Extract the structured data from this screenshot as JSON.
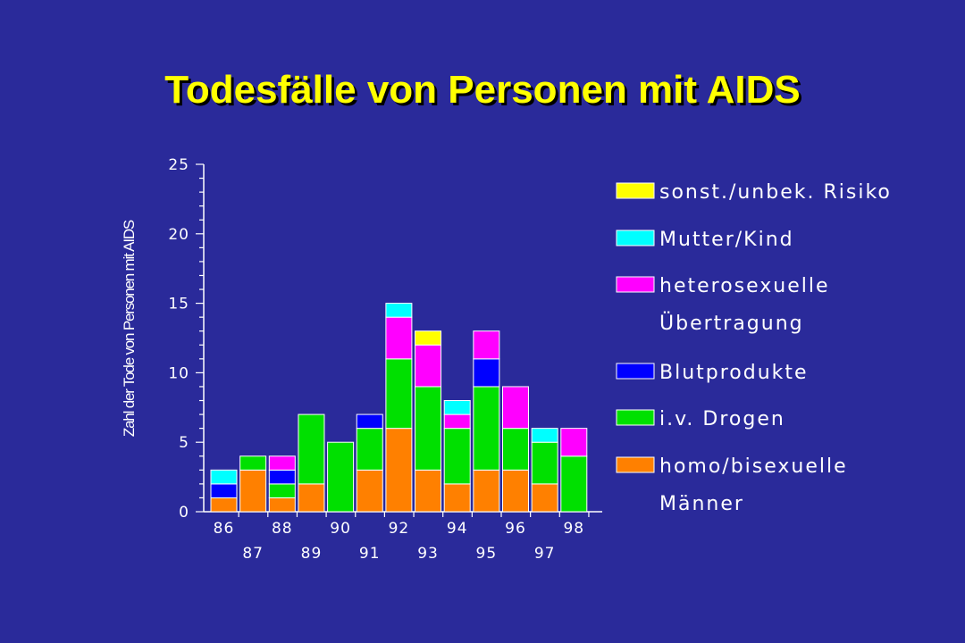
{
  "chart_data": {
    "type": "bar",
    "stacked": true,
    "title": "Todesfälle von Personen mit AIDS",
    "ylabel": "Zahl der Tode von Personen mit AIDS",
    "xlabel": "",
    "ylim": [
      0,
      25
    ],
    "yticks": [
      "0",
      "5",
      "10",
      "15",
      "20",
      "25"
    ],
    "categories": [
      "86",
      "87",
      "88",
      "89",
      "90",
      "91",
      "92",
      "93",
      "94",
      "95",
      "96",
      "97",
      "98"
    ],
    "series": [
      {
        "name": "homo/bisexuelle Männer",
        "color": "#ff8000",
        "values": [
          1,
          3,
          1,
          2,
          0,
          3,
          6,
          3,
          2,
          3,
          3,
          2,
          0
        ]
      },
      {
        "name": "i.v. Drogen",
        "color": "#00e000",
        "values": [
          0,
          1,
          1,
          5,
          5,
          3,
          5,
          6,
          4,
          6,
          3,
          3,
          4
        ]
      },
      {
        "name": "Blutprodukte",
        "color": "#0000ff",
        "values": [
          1,
          0,
          1,
          0,
          0,
          1,
          0,
          0,
          0,
          2,
          0,
          0,
          0
        ]
      },
      {
        "name": "heterosexuelle Übertragung",
        "color": "#ff00ff",
        "values": [
          0,
          0,
          1,
          0,
          0,
          0,
          3,
          3,
          1,
          2,
          3,
          0,
          2
        ]
      },
      {
        "name": "Mutter/Kind",
        "color": "#00ffff",
        "values": [
          1,
          0,
          0,
          0,
          0,
          0,
          1,
          0,
          1,
          0,
          0,
          1,
          0
        ]
      },
      {
        "name": "sonst./unbek. Risiko",
        "color": "#ffff00",
        "values": [
          0,
          0,
          0,
          0,
          0,
          0,
          0,
          1,
          0,
          0,
          0,
          0,
          0
        ]
      }
    ],
    "legend": {
      "placement": "right",
      "order": [
        5,
        4,
        3,
        2,
        1,
        0
      ],
      "entries": [
        {
          "lines": [
            "sonst./unbek. Risiko"
          ],
          "color": "#ffff00"
        },
        {
          "lines": [
            "Mutter/Kind"
          ],
          "color": "#00ffff"
        },
        {
          "lines": [
            "heterosexuelle",
            "Übertragung"
          ],
          "color": "#ff00ff"
        },
        {
          "lines": [
            "Blutprodukte"
          ],
          "color": "#0000ff"
        },
        {
          "lines": [
            "i.v. Drogen"
          ],
          "color": "#00e000"
        },
        {
          "lines": [
            "homo/bisexuelle",
            "Männer"
          ],
          "color": "#ff8000"
        }
      ]
    },
    "background_color": "#2a2a9a",
    "title_color": "#ffff00"
  }
}
